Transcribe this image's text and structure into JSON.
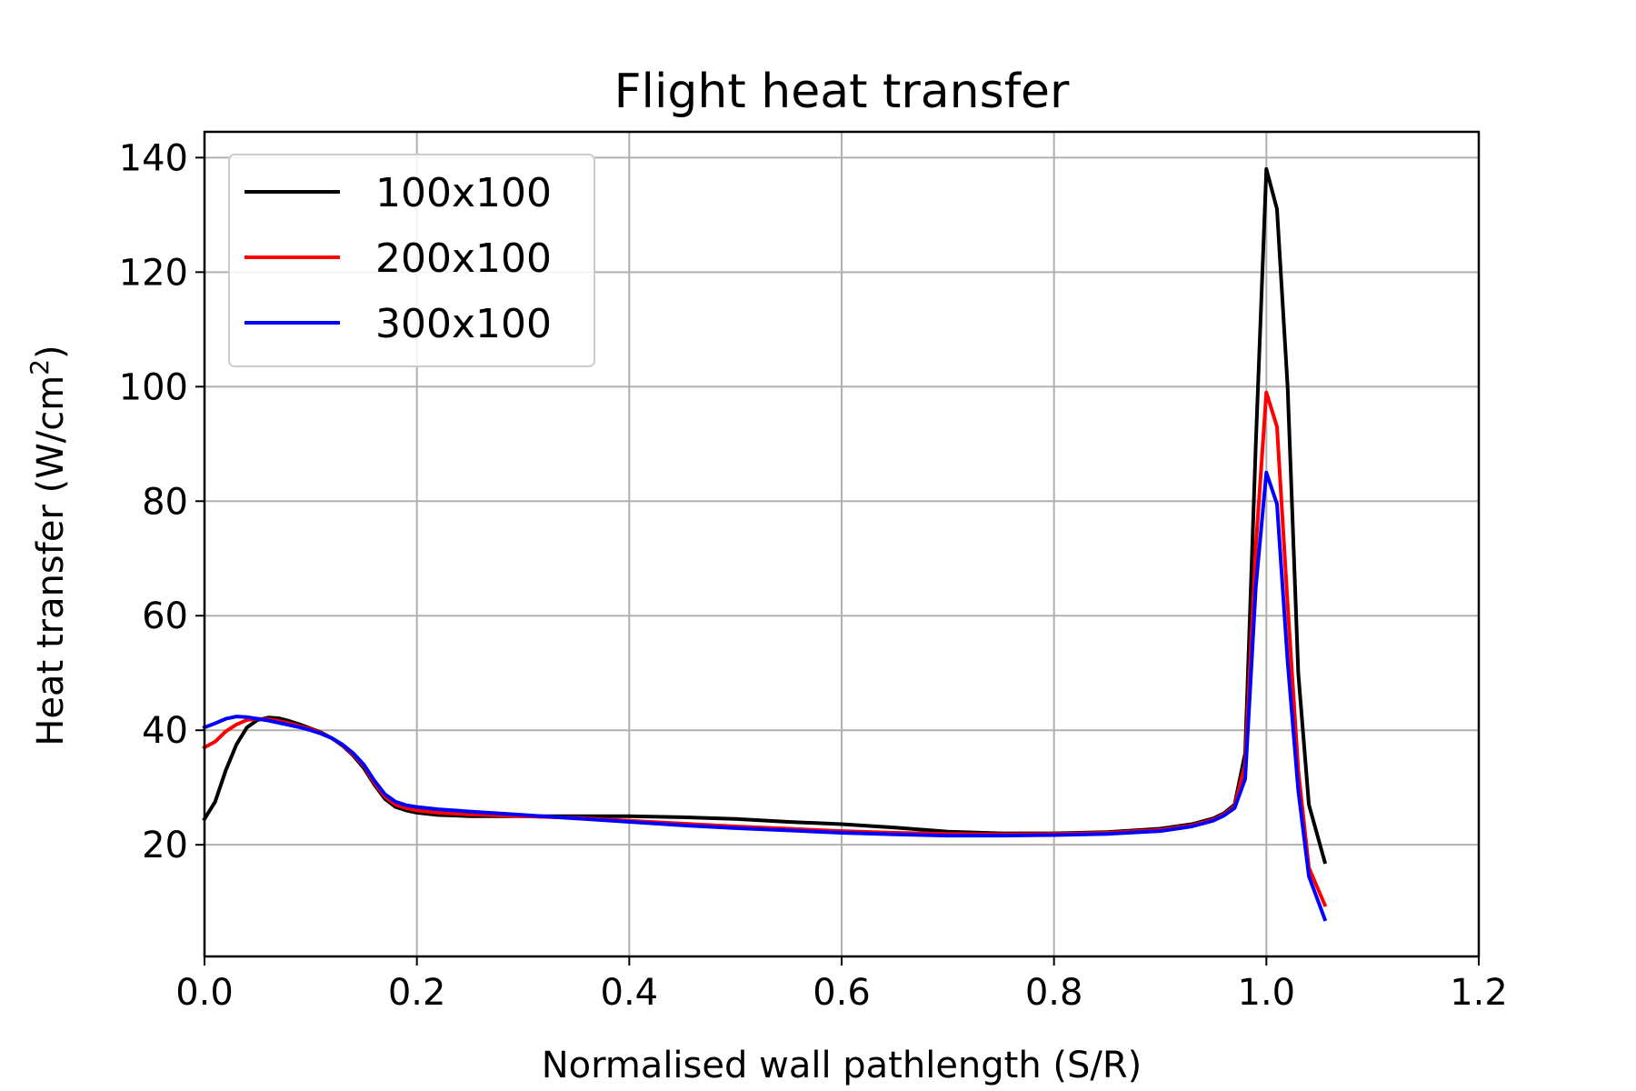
{
  "chart_data": {
    "type": "line",
    "title": "Flight heat transfer",
    "xlabel": "Normalised wall pathlength (S/R)",
    "ylabel_main": "Heat transfer (W/cm",
    "ylabel_sup": "2",
    "ylabel_close": ")",
    "xlim": [
      0.0,
      1.2
    ],
    "ylim": [
      0.5,
      144.5
    ],
    "xticks": [
      0.0,
      0.2,
      0.4,
      0.6,
      0.8,
      1.0,
      1.2
    ],
    "xtick_labels": [
      "0.0",
      "0.2",
      "0.4",
      "0.6",
      "0.8",
      "1.0",
      "1.2"
    ],
    "yticks": [
      20,
      40,
      60,
      80,
      100,
      120,
      140
    ],
    "ytick_labels": [
      "20",
      "40",
      "60",
      "80",
      "100",
      "120",
      "140"
    ],
    "grid": true,
    "legend_position": "top-left",
    "series": [
      {
        "name": "100x100",
        "color": "#000000",
        "x": [
          0.0,
          0.01,
          0.02,
          0.03,
          0.04,
          0.05,
          0.06,
          0.07,
          0.08,
          0.09,
          0.1,
          0.11,
          0.12,
          0.13,
          0.14,
          0.15,
          0.16,
          0.17,
          0.18,
          0.19,
          0.2,
          0.22,
          0.25,
          0.3,
          0.35,
          0.4,
          0.45,
          0.5,
          0.55,
          0.6,
          0.65,
          0.7,
          0.75,
          0.8,
          0.85,
          0.9,
          0.93,
          0.95,
          0.96,
          0.97,
          0.98,
          0.99,
          1.0,
          1.01,
          1.02,
          1.03,
          1.04,
          1.055
        ],
        "y": [
          24.5,
          27.5,
          33,
          37.5,
          40.5,
          41.8,
          42.2,
          42.1,
          41.6,
          41.0,
          40.3,
          39.6,
          38.6,
          37.3,
          35.6,
          33.4,
          30.5,
          28.0,
          26.6,
          26.0,
          25.6,
          25.2,
          25.0,
          25.0,
          25.0,
          25.0,
          24.8,
          24.5,
          24.0,
          23.6,
          23.0,
          22.3,
          22.0,
          22.0,
          22.2,
          22.8,
          23.6,
          24.6,
          25.5,
          27.0,
          36.0,
          90.0,
          138.0,
          131.0,
          100.0,
          50.0,
          27.0,
          17.0
        ]
      },
      {
        "name": "200x100",
        "color": "#ff0000",
        "x": [
          0.0,
          0.01,
          0.02,
          0.03,
          0.04,
          0.05,
          0.06,
          0.07,
          0.08,
          0.09,
          0.1,
          0.11,
          0.12,
          0.13,
          0.14,
          0.15,
          0.16,
          0.17,
          0.18,
          0.19,
          0.2,
          0.22,
          0.25,
          0.3,
          0.35,
          0.4,
          0.45,
          0.5,
          0.55,
          0.6,
          0.65,
          0.7,
          0.75,
          0.8,
          0.85,
          0.9,
          0.93,
          0.95,
          0.96,
          0.97,
          0.98,
          0.99,
          1.0,
          1.01,
          1.02,
          1.03,
          1.04,
          1.055
        ],
        "y": [
          37.0,
          38.0,
          39.8,
          41.0,
          41.8,
          42.0,
          41.9,
          41.6,
          41.2,
          40.7,
          40.2,
          39.5,
          38.6,
          37.4,
          35.8,
          33.8,
          30.8,
          28.4,
          27.0,
          26.4,
          26.0,
          25.6,
          25.3,
          25.0,
          24.7,
          24.2,
          23.7,
          23.2,
          22.8,
          22.4,
          22.1,
          21.9,
          21.8,
          21.9,
          22.1,
          22.6,
          23.4,
          24.4,
          25.3,
          26.7,
          34.0,
          72.0,
          99.0,
          93.0,
          62.0,
          33.0,
          16.0,
          9.5
        ]
      },
      {
        "name": "300x100",
        "color": "#0000ff",
        "x": [
          0.0,
          0.01,
          0.02,
          0.03,
          0.04,
          0.05,
          0.06,
          0.07,
          0.08,
          0.09,
          0.1,
          0.11,
          0.12,
          0.13,
          0.14,
          0.15,
          0.16,
          0.17,
          0.18,
          0.19,
          0.2,
          0.22,
          0.25,
          0.3,
          0.35,
          0.4,
          0.45,
          0.5,
          0.55,
          0.6,
          0.65,
          0.7,
          0.75,
          0.8,
          0.85,
          0.9,
          0.93,
          0.95,
          0.96,
          0.97,
          0.98,
          0.99,
          1.0,
          1.01,
          1.02,
          1.03,
          1.04,
          1.055
        ],
        "y": [
          40.5,
          41.2,
          42.0,
          42.4,
          42.3,
          42.0,
          41.7,
          41.3,
          40.9,
          40.5,
          40.0,
          39.4,
          38.6,
          37.5,
          36.0,
          34.0,
          31.2,
          28.8,
          27.5,
          26.9,
          26.6,
          26.2,
          25.8,
          25.2,
          24.6,
          24.0,
          23.4,
          22.9,
          22.5,
          22.1,
          21.8,
          21.6,
          21.6,
          21.7,
          21.9,
          22.4,
          23.2,
          24.2,
          25.1,
          26.4,
          31.5,
          65.0,
          85.0,
          79.5,
          52.0,
          29.5,
          14.5,
          7.0
        ]
      }
    ]
  }
}
